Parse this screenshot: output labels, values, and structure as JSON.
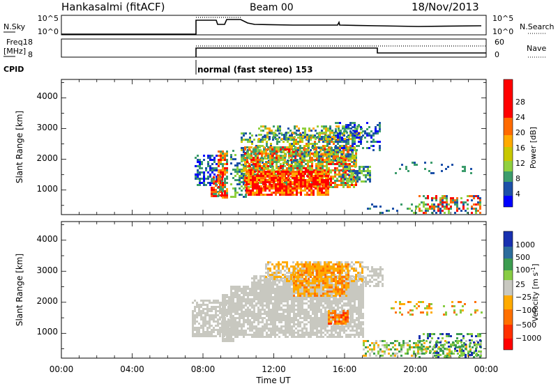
{
  "header": {
    "station": "Hankasalmi (fitACF)",
    "beam": "Beam 00",
    "date": "18/Nov/2013"
  },
  "param_panels": {
    "nsky_label": "N.Sky",
    "nsky_ticks": [
      "10^5",
      "10^0"
    ],
    "nsearch_label": "N.Search",
    "nsearch_ticks": [
      "10^5",
      "10^0"
    ],
    "freq_label_1": "Freq.",
    "freq_label_2": "[MHz]",
    "freq_ticks": [
      "18",
      "8"
    ],
    "nave_label": "Nave",
    "nave_ticks": [
      "60",
      "0"
    ],
    "cpid_label": "CPID",
    "cpid_text": "normal (fast stereo) 153"
  },
  "chart_data": [
    {
      "type": "heatmap",
      "panel": "power",
      "ylabel": "Slant Range [km]",
      "yticks": [
        1000,
        2000,
        3000,
        4000
      ],
      "ylim": [
        200,
        4600
      ],
      "xlim": [
        0,
        24
      ],
      "colorbar_label": "Power [dB]",
      "colorbar_ticks": [
        "28",
        "24",
        "20",
        "16",
        "12",
        "8",
        "4"
      ],
      "colors": [
        "#ff0000",
        "#ff6a00",
        "#ffaa00",
        "#c8c800",
        "#90d040",
        "#3c9c6c",
        "#1c50a8",
        "#0000ff"
      ]
    },
    {
      "type": "heatmap",
      "panel": "velocity",
      "ylabel": "Slant Range [km]",
      "yticks": [
        1000,
        2000,
        3000,
        4000
      ],
      "ylim": [
        200,
        4600
      ],
      "xlim": [
        0,
        24
      ],
      "xlabel": "Time UT",
      "xticks": [
        "00:00",
        "04:00",
        "08:00",
        "12:00",
        "16:00",
        "20:00",
        "00:00"
      ],
      "colorbar_label": "Velocity [m s^-1]",
      "colorbar_ticks": [
        "1000",
        "500",
        "100",
        "25",
        "−25",
        "−100",
        "−500",
        "−1000"
      ],
      "colors": [
        "#1830b0",
        "#2c6c9c",
        "#3c9c50",
        "#88cc44",
        "#c8c8c0",
        "#ffaa00",
        "#ff7000",
        "#ff3000",
        "#ff0000"
      ]
    }
  ]
}
